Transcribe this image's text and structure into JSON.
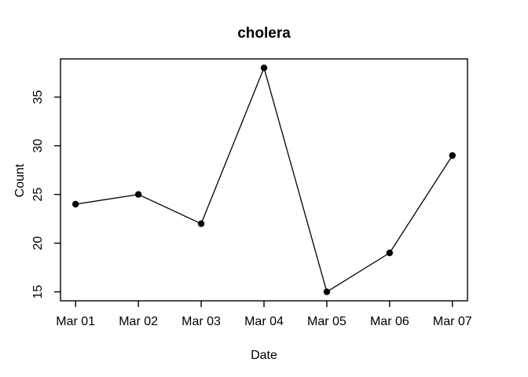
{
  "chart_data": {
    "type": "line",
    "title": "cholera",
    "xlabel": "Date",
    "ylabel": "Count",
    "categories": [
      "Mar 01",
      "Mar 02",
      "Mar 03",
      "Mar 04",
      "Mar 05",
      "Mar 06",
      "Mar 07"
    ],
    "values": [
      24,
      25,
      22,
      38,
      15,
      19,
      29
    ],
    "yticks": [
      15,
      20,
      25,
      30,
      35
    ],
    "ylim": [
      14.08,
      38.92
    ],
    "line_color": "#000000",
    "marker": "filled-circle",
    "marker_color": "#000000",
    "axis_color": "#000000",
    "background_color": "#ffffff",
    "grid": "off",
    "legend": "none"
  }
}
